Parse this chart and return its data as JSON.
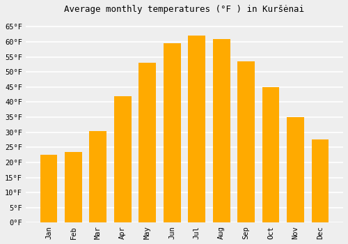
{
  "title": "Average monthly temperatures (°F ) in Kuršėnai",
  "months": [
    "Jan",
    "Feb",
    "Mar",
    "Apr",
    "May",
    "Jun",
    "Jul",
    "Aug",
    "Sep",
    "Oct",
    "Nov",
    "Dec"
  ],
  "values": [
    22.5,
    23.5,
    30.5,
    42.0,
    53.0,
    59.5,
    62.0,
    61.0,
    53.5,
    45.0,
    35.0,
    27.5
  ],
  "bar_color": "#FFAA00",
  "ylim": [
    0,
    68
  ],
  "yticks": [
    0,
    5,
    10,
    15,
    20,
    25,
    30,
    35,
    40,
    45,
    50,
    55,
    60,
    65
  ],
  "background_color": "#eeeeee",
  "grid_color": "#ffffff",
  "title_fontsize": 9,
  "tick_fontsize": 7.5,
  "bar_width": 0.7
}
